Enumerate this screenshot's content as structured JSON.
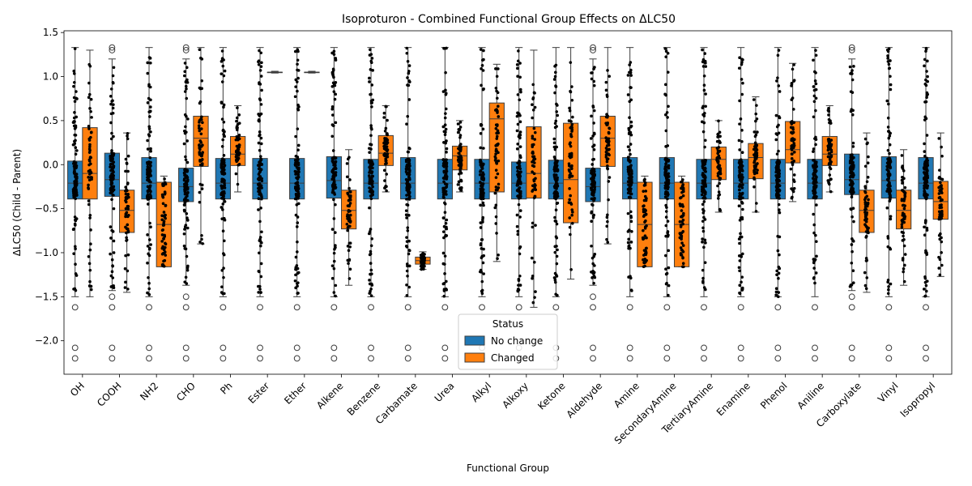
{
  "chart_data": {
    "type": "box",
    "title": "Isoproturon - Combined Functional Group Effects on ΔLC50",
    "xlabel": "Functional Group",
    "ylabel": "ΔLC50 (Child - Parent)",
    "ylim": [
      -2.38,
      1.52
    ],
    "yticks": [
      -2.0,
      -1.5,
      -1.0,
      -0.5,
      0.0,
      0.5,
      1.0,
      1.5
    ],
    "ytick_labels": [
      "−2.0",
      "−1.5",
      "−1.0",
      "−0.5",
      "0.0",
      "0.5",
      "1.0",
      "1.5"
    ],
    "categories": [
      "OH",
      "COOH",
      "NH2",
      "CHO",
      "Ph",
      "Ester",
      "Ether",
      "Alkene",
      "Benzene",
      "Carbamate",
      "Urea",
      "Alkyl",
      "Alkoxy",
      "Ketone",
      "Aldehyde",
      "Amine",
      "SecondaryAmine",
      "TertiaryAmine",
      "Enamine",
      "Phenol",
      "Aniline",
      "Carboxylate",
      "Vinyl",
      "Isopropyl"
    ],
    "legend": {
      "title": "Status",
      "position": "bottom-center"
    },
    "series": [
      {
        "name": "No change",
        "color": "#1f77b4",
        "boxes": [
          {
            "q1": -0.39,
            "median": -0.21,
            "q3": 0.04,
            "whislo": -1.5,
            "whishi": 1.33
          },
          {
            "q1": -0.36,
            "median": -0.17,
            "q3": 0.13,
            "whislo": -1.43,
            "whishi": 1.2
          },
          {
            "q1": -0.39,
            "median": -0.21,
            "q3": 0.08,
            "whislo": -1.5,
            "whishi": 1.33
          },
          {
            "q1": -0.42,
            "median": -0.25,
            "q3": -0.04,
            "whislo": -1.37,
            "whishi": 1.2
          },
          {
            "q1": -0.39,
            "median": -0.21,
            "q3": 0.07,
            "whislo": -1.5,
            "whishi": 1.33
          },
          {
            "q1": -0.39,
            "median": -0.21,
            "q3": 0.07,
            "whislo": -1.5,
            "whishi": 1.33
          },
          {
            "q1": -0.39,
            "median": -0.21,
            "q3": 0.07,
            "whislo": -1.5,
            "whishi": 1.33
          },
          {
            "q1": -0.38,
            "median": -0.18,
            "q3": 0.09,
            "whislo": -1.5,
            "whishi": 1.33
          },
          {
            "q1": -0.39,
            "median": -0.21,
            "q3": 0.06,
            "whislo": -1.5,
            "whishi": 1.33
          },
          {
            "q1": -0.39,
            "median": -0.21,
            "q3": 0.08,
            "whislo": -1.5,
            "whishi": 1.33
          },
          {
            "q1": -0.39,
            "median": -0.21,
            "q3": 0.06,
            "whislo": -1.5,
            "whishi": 1.33
          },
          {
            "q1": -0.39,
            "median": -0.21,
            "q3": 0.06,
            "whislo": -1.5,
            "whishi": 1.33
          },
          {
            "q1": -0.39,
            "median": -0.21,
            "q3": 0.03,
            "whislo": -1.5,
            "whishi": 1.33
          },
          {
            "q1": -0.39,
            "median": -0.21,
            "q3": 0.05,
            "whislo": -1.5,
            "whishi": 1.33
          },
          {
            "q1": -0.42,
            "median": -0.25,
            "q3": -0.04,
            "whislo": -1.37,
            "whishi": 1.2
          },
          {
            "q1": -0.39,
            "median": -0.21,
            "q3": 0.08,
            "whislo": -1.5,
            "whishi": 1.33
          },
          {
            "q1": -0.39,
            "median": -0.21,
            "q3": 0.08,
            "whislo": -1.5,
            "whishi": 1.33
          },
          {
            "q1": -0.39,
            "median": -0.21,
            "q3": 0.06,
            "whislo": -1.5,
            "whishi": 1.33
          },
          {
            "q1": -0.39,
            "median": -0.21,
            "q3": 0.06,
            "whislo": -1.5,
            "whishi": 1.33
          },
          {
            "q1": -0.39,
            "median": -0.21,
            "q3": 0.06,
            "whislo": -1.5,
            "whishi": 1.33
          },
          {
            "q1": -0.39,
            "median": -0.21,
            "q3": 0.06,
            "whislo": -1.5,
            "whishi": 1.33
          },
          {
            "q1": -0.34,
            "median": -0.17,
            "q3": 0.12,
            "whislo": -1.43,
            "whishi": 1.2
          },
          {
            "q1": -0.38,
            "median": -0.18,
            "q3": 0.09,
            "whislo": -1.5,
            "whishi": 1.33
          },
          {
            "q1": -0.39,
            "median": -0.21,
            "q3": 0.08,
            "whislo": -1.5,
            "whishi": 1.33
          }
        ]
      },
      {
        "name": "Changed",
        "color": "#ff7f0e",
        "boxes": [
          {
            "q1": -0.39,
            "median": -0.1,
            "q3": 0.42,
            "whislo": -1.5,
            "whishi": 1.3
          },
          {
            "q1": -0.77,
            "median": -0.52,
            "q3": -0.29,
            "whislo": -1.45,
            "whishi": 0.36
          },
          {
            "q1": -1.16,
            "median": -0.68,
            "q3": -0.2,
            "whislo": -1.16,
            "whishi": -0.13
          },
          {
            "q1": -0.02,
            "median": 0.3,
            "q3": 0.55,
            "whislo": -0.9,
            "whishi": 1.33
          },
          {
            "q1": -0.01,
            "median": 0.12,
            "q3": 0.32,
            "whislo": -0.31,
            "whishi": 0.67
          },
          {
            "q1": 1.05,
            "median": 1.05,
            "q3": 1.05,
            "whislo": 1.04,
            "whishi": 1.06
          },
          {
            "q1": 1.05,
            "median": 1.05,
            "q3": 1.05,
            "whislo": 1.04,
            "whishi": 1.06
          },
          {
            "q1": -0.73,
            "median": -0.52,
            "q3": -0.29,
            "whislo": -1.37,
            "whishi": 0.17
          },
          {
            "q1": -0.01,
            "median": 0.13,
            "q3": 0.33,
            "whislo": -0.31,
            "whishi": 0.67
          },
          {
            "q1": -1.13,
            "median": -1.09,
            "q3": -1.05,
            "whislo": -1.19,
            "whishi": -0.99
          },
          {
            "q1": -0.06,
            "median": 0.1,
            "q3": 0.21,
            "whislo": -0.31,
            "whishi": 0.5
          },
          {
            "q1": -0.31,
            "median": 0.52,
            "q3": 0.7,
            "whislo": -1.1,
            "whishi": 1.14
          },
          {
            "q1": -0.38,
            "median": -0.1,
            "q3": 0.43,
            "whislo": -1.62,
            "whishi": 1.3
          },
          {
            "q1": -0.66,
            "median": -0.17,
            "q3": 0.47,
            "whislo": -1.3,
            "whishi": 1.33
          },
          {
            "q1": -0.02,
            "median": 0.3,
            "q3": 0.55,
            "whislo": -0.9,
            "whishi": 1.33
          },
          {
            "q1": -1.16,
            "median": -0.68,
            "q3": -0.2,
            "whislo": -1.16,
            "whishi": -0.13
          },
          {
            "q1": -1.16,
            "median": -0.68,
            "q3": -0.2,
            "whislo": -1.16,
            "whishi": -0.13
          },
          {
            "q1": -0.17,
            "median": 0.06,
            "q3": 0.2,
            "whislo": -0.54,
            "whishi": 0.5
          },
          {
            "q1": -0.16,
            "median": 0.08,
            "q3": 0.24,
            "whislo": -0.54,
            "whishi": 0.77
          },
          {
            "q1": 0.02,
            "median": 0.17,
            "q3": 0.49,
            "whislo": -0.42,
            "whishi": 1.15
          },
          {
            "q1": -0.01,
            "median": 0.12,
            "q3": 0.32,
            "whislo": -0.31,
            "whishi": 0.67
          },
          {
            "q1": -0.77,
            "median": -0.52,
            "q3": -0.29,
            "whislo": -1.45,
            "whishi": 0.36
          },
          {
            "q1": -0.73,
            "median": -0.52,
            "q3": -0.29,
            "whislo": -1.37,
            "whishi": 0.17
          },
          {
            "q1": -0.62,
            "median": -0.42,
            "q3": -0.19,
            "whislo": -1.27,
            "whishi": 0.36
          }
        ]
      }
    ]
  }
}
